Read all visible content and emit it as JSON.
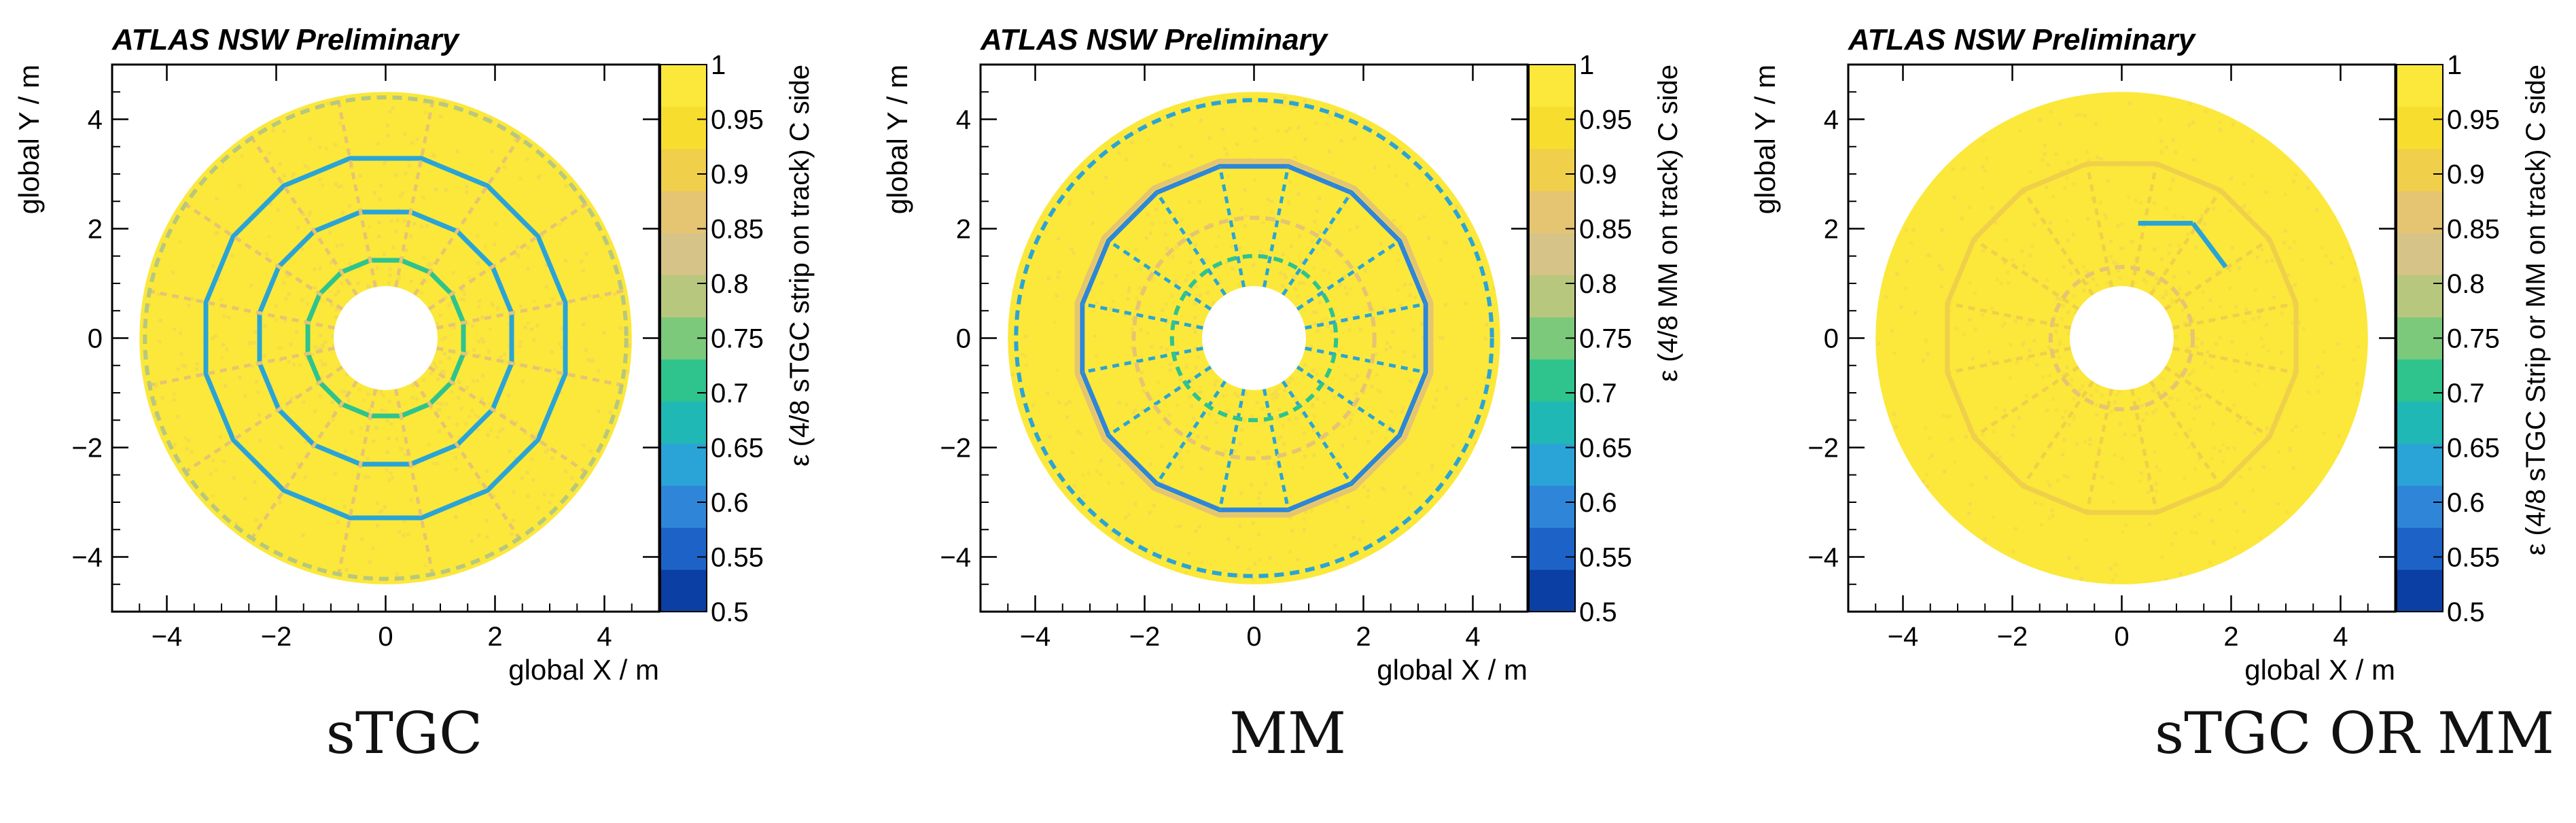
{
  "panel_captions": [
    "sTGC",
    "MM",
    "sTGC OR MM"
  ],
  "colormap": [
    "#0b3fa3",
    "#1d63c7",
    "#2f86d9",
    "#2aa4d6",
    "#20b8b4",
    "#2fc38e",
    "#7cc97b",
    "#b8c77e",
    "#d6c388",
    "#e5c472",
    "#f0cf4a",
    "#f7dd2e",
    "#fbe83a"
  ],
  "chart_data": [
    {
      "type": "heatmap",
      "title": "ATLAS NSW Preliminary",
      "xlabel": "global X / m",
      "ylabel": "global Y / m",
      "zlabel": "ε (4/8 sTGC strip on track) C side",
      "xlim": [
        -5,
        5
      ],
      "ylim": [
        -5,
        5
      ],
      "zlim": [
        0.5,
        1
      ],
      "xticks": [
        -4,
        -2,
        0,
        2,
        4
      ],
      "yticks": [
        -4,
        -2,
        0,
        2,
        4
      ],
      "zticks": [
        "0.5",
        "0.55",
        "0.6",
        "0.65",
        "0.7",
        "0.75",
        "0.8",
        "0.85",
        "0.9",
        "0.95",
        "1"
      ],
      "inner_radius_m": 0.95,
      "outer_radius_m": 4.5,
      "baseline_efficiency": 0.97,
      "features": [
        {
          "kind": "polygon",
          "sides": 16,
          "radius_m": 1.45,
          "efficiency": 0.7
        },
        {
          "kind": "polygon",
          "sides": 16,
          "radius_m": 2.35,
          "efficiency": 0.62
        },
        {
          "kind": "polygon",
          "sides": 16,
          "radius_m": 3.35,
          "efficiency": 0.62
        },
        {
          "kind": "spokes",
          "count": 16,
          "r_from_m": 0.95,
          "r_to_m": 4.5,
          "efficiency": 0.85
        },
        {
          "kind": "ring",
          "radius_m": 4.4,
          "efficiency": 0.8
        }
      ]
    },
    {
      "type": "heatmap",
      "title": "ATLAS NSW Preliminary",
      "xlabel": "global X / m",
      "ylabel": "global Y / m",
      "zlabel": "ε (4/8 MM on track) C side",
      "xlim": [
        -5,
        5
      ],
      "ylim": [
        -5,
        5
      ],
      "zlim": [
        0.5,
        1
      ],
      "xticks": [
        -4,
        -2,
        0,
        2,
        4
      ],
      "yticks": [
        -4,
        -2,
        0,
        2,
        4
      ],
      "zticks": [
        "0.5",
        "0.55",
        "0.6",
        "0.65",
        "0.7",
        "0.75",
        "0.8",
        "0.85",
        "0.9",
        "0.95",
        "1"
      ],
      "inner_radius_m": 0.95,
      "outer_radius_m": 4.5,
      "baseline_efficiency": 0.98,
      "features": [
        {
          "kind": "polygon",
          "sides": 16,
          "radius_m": 3.2,
          "efficiency": 0.6
        },
        {
          "kind": "polygon",
          "sides": 16,
          "radius_m": 3.3,
          "efficiency": 0.88
        },
        {
          "kind": "spokes",
          "count": 16,
          "r_from_m": 0.95,
          "r_to_m": 3.2,
          "efficiency": 0.62
        },
        {
          "kind": "ring",
          "radius_m": 1.5,
          "efficiency": 0.7
        },
        {
          "kind": "ring",
          "radius_m": 2.2,
          "efficiency": 0.88
        },
        {
          "kind": "ring",
          "radius_m": 4.35,
          "efficiency": 0.65
        }
      ]
    },
    {
      "type": "heatmap",
      "title": "ATLAS NSW Preliminary",
      "xlabel": "global X / m",
      "ylabel": "global Y / m",
      "zlabel": "ε (4/8 sTGC Strip or MM on track) C side",
      "xlim": [
        -5,
        5
      ],
      "ylim": [
        -5,
        5
      ],
      "zlim": [
        0.5,
        1
      ],
      "xticks": [
        -4,
        -2,
        0,
        2,
        4
      ],
      "yticks": [
        -4,
        -2,
        0,
        2,
        4
      ],
      "zticks": [
        "0.5",
        "0.55",
        "0.6",
        "0.65",
        "0.7",
        "0.75",
        "0.8",
        "0.85",
        "0.9",
        "0.95",
        "1"
      ],
      "inner_radius_m": 0.95,
      "outer_radius_m": 4.5,
      "baseline_efficiency": 0.99,
      "features": [
        {
          "kind": "spokes",
          "count": 16,
          "r_from_m": 0.95,
          "r_to_m": 3.2,
          "efficiency": 0.92
        },
        {
          "kind": "polygon",
          "sides": 16,
          "radius_m": 3.25,
          "efficiency": 0.92
        },
        {
          "kind": "ring",
          "radius_m": 1.3,
          "efficiency": 0.85
        },
        {
          "kind": "segment",
          "from_m": [
            0.3,
            2.1
          ],
          "to_m": [
            1.3,
            2.1
          ],
          "efficiency": 0.62
        },
        {
          "kind": "segment",
          "from_m": [
            1.3,
            2.1
          ],
          "to_m": [
            1.9,
            1.3
          ],
          "efficiency": 0.62
        }
      ]
    }
  ]
}
